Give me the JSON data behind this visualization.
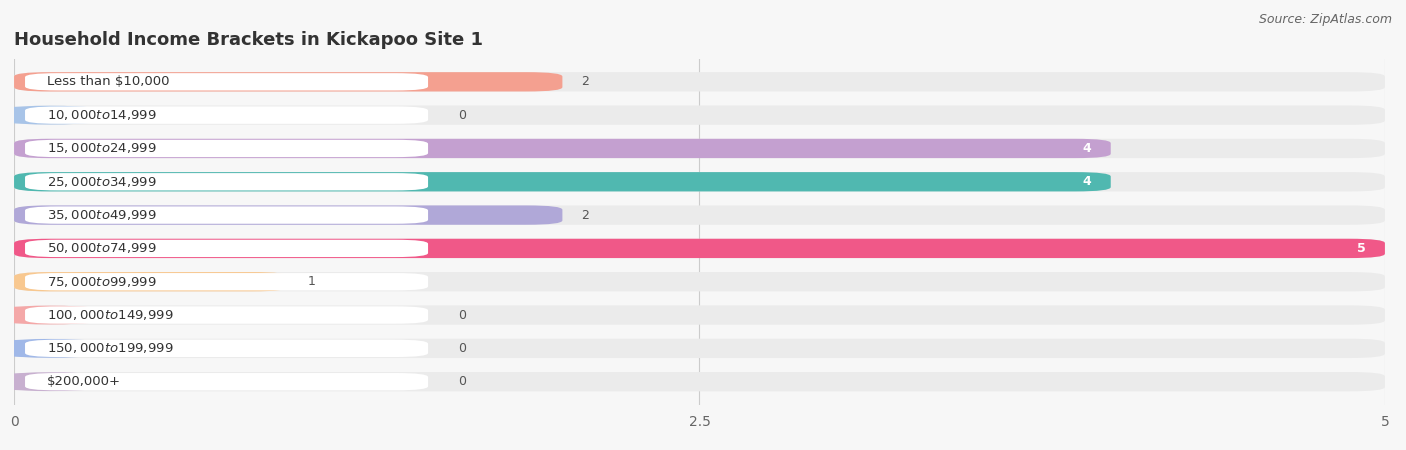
{
  "title": "Household Income Brackets in Kickapoo Site 1",
  "source": "Source: ZipAtlas.com",
  "categories": [
    "Less than $10,000",
    "$10,000 to $14,999",
    "$15,000 to $24,999",
    "$25,000 to $34,999",
    "$35,000 to $49,999",
    "$50,000 to $74,999",
    "$75,000 to $99,999",
    "$100,000 to $149,999",
    "$150,000 to $199,999",
    "$200,000+"
  ],
  "values": [
    2,
    0,
    4,
    4,
    2,
    5,
    1,
    0,
    0,
    0
  ],
  "bar_colors": [
    "#F4A090",
    "#A8C4E8",
    "#C4A0D0",
    "#50B8B0",
    "#B0A8D8",
    "#F05888",
    "#F8C890",
    "#F4A8A8",
    "#A0B8E8",
    "#C8B0D0"
  ],
  "xlim": [
    0,
    5
  ],
  "xticks": [
    0,
    2.5,
    5
  ],
  "background_color": "#f7f7f7",
  "bar_bg_color": "#ebebeb",
  "label_bg_color": "#ffffff",
  "title_fontsize": 13,
  "label_fontsize": 9.5,
  "value_fontsize": 9
}
